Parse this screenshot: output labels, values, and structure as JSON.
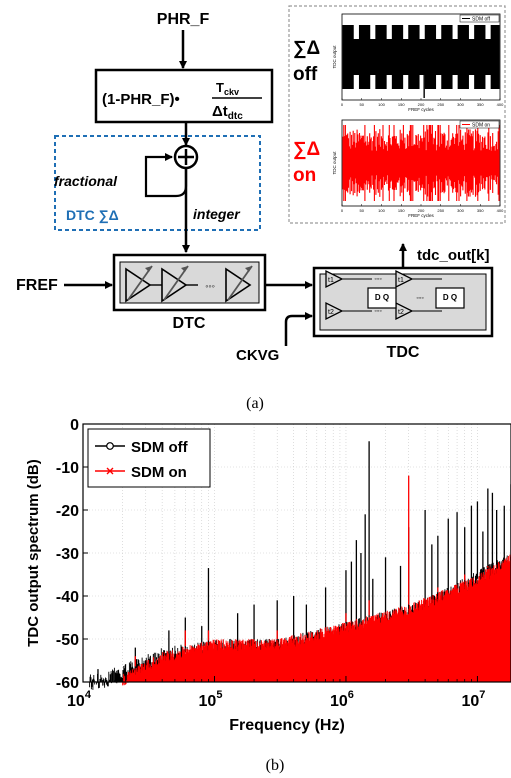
{
  "diagram": {
    "input_label": "PHR_F",
    "gain_prefix": "(1-PHR_F)•",
    "gain_numerator": "T",
    "gain_numerator_sub": "ckv",
    "gain_denominator": "Δt",
    "gain_denominator_sub": "dtc",
    "fractional_label": "fractional",
    "integer_label": "integer",
    "dtc_sd_label": "DTC ∑Δ",
    "fref_label": "FREF",
    "dtc_label": "DTC",
    "tdc_label": "TDC",
    "ckvg_label": "CKVG",
    "tdc_out_label": "tdc_out[k]",
    "sd_symbol": "∑Δ",
    "sd_off_label": "off",
    "sd_on_label": "on",
    "t1": "t1",
    "t2": "t2",
    "dq": "D Q",
    "dots": "◦◦◦",
    "panel_a_caption": "(a)",
    "panel_b_caption": "(b)",
    "colors": {
      "off": "#000000",
      "on": "#ff0000",
      "dashed_box": "#1f6fb5",
      "inset_border": "#9a9a9a"
    },
    "inset_off": {
      "legend": "SDM off",
      "ylabel": "TDC output",
      "xlabel": "FREF cycles",
      "xticks": [
        "0",
        "50",
        "100",
        "150",
        "200",
        "250",
        "300",
        "350",
        "400"
      ]
    },
    "inset_on": {
      "legend": "SDM on",
      "ylabel": "TDC output",
      "xlabel": "FREF cycles",
      "xticks": [
        "0",
        "50",
        "100",
        "150",
        "200",
        "250",
        "300",
        "350",
        "400"
      ]
    }
  },
  "chart_data": {
    "type": "line",
    "ylabel": "TDC output spectrum (dB)",
    "xlabel": "Frequency (Hz)",
    "x_scale": "log",
    "xlim": [
      10000,
      18000000
    ],
    "ylim": [
      -60,
      0
    ],
    "yticks": [
      "0",
      "-10",
      "-20",
      "-30",
      "-40",
      "-50",
      "-60"
    ],
    "xticks": [
      {
        "base": "10",
        "exp": "4"
      },
      {
        "base": "10",
        "exp": "5"
      },
      {
        "base": "10",
        "exp": "6"
      },
      {
        "base": "10",
        "exp": "7"
      }
    ],
    "grid": true,
    "legend_position": "top-left",
    "series": [
      {
        "name": "SDM off",
        "marker": "circle",
        "floor": [
          [
            13000,
            -58
          ],
          [
            20000,
            -56
          ],
          [
            40000,
            -52
          ],
          [
            100000,
            -50
          ],
          [
            300000,
            -50
          ],
          [
            1000000,
            -46
          ],
          [
            3000000,
            -42
          ],
          [
            6000000,
            -38
          ],
          [
            10000000,
            -34
          ],
          [
            18000000,
            -30
          ]
        ],
        "spurs": [
          [
            13000,
            -57
          ],
          [
            21000,
            -56
          ],
          [
            25000,
            -52
          ],
          [
            45000,
            -48
          ],
          [
            60000,
            -45
          ],
          [
            80000,
            -47
          ],
          [
            90000,
            -33.5
          ],
          [
            150000,
            -44
          ],
          [
            200000,
            -42
          ],
          [
            300000,
            -41
          ],
          [
            400000,
            -40
          ],
          [
            500000,
            -42
          ],
          [
            700000,
            -38
          ],
          [
            1000000,
            -34
          ],
          [
            1100000,
            -32
          ],
          [
            1200000,
            -27
          ],
          [
            1300000,
            -30
          ],
          [
            1400000,
            -21
          ],
          [
            1500000,
            -4
          ],
          [
            1600000,
            -36
          ],
          [
            2000000,
            -31
          ],
          [
            2600000,
            -33
          ],
          [
            3000000,
            -24
          ],
          [
            4000000,
            -20
          ],
          [
            4500000,
            -28
          ],
          [
            5000000,
            -26
          ],
          [
            6000000,
            -22
          ],
          [
            7000000,
            -20.5
          ],
          [
            8000000,
            -24
          ],
          [
            9000000,
            -19
          ],
          [
            10000000,
            -18
          ],
          [
            11000000,
            -25
          ],
          [
            12000000,
            -15
          ],
          [
            13000000,
            -16
          ],
          [
            14000000,
            -20
          ],
          [
            16000000,
            -19
          ],
          [
            18000000,
            -14
          ]
        ]
      },
      {
        "name": "SDM on",
        "marker": "x",
        "floor": [
          [
            20000,
            -58
          ],
          [
            40000,
            -53
          ],
          [
            100000,
            -50
          ],
          [
            300000,
            -50
          ],
          [
            1000000,
            -46
          ],
          [
            3000000,
            -42
          ],
          [
            6000000,
            -38
          ],
          [
            10000000,
            -35
          ],
          [
            18000000,
            -30
          ]
        ],
        "spurs": [
          [
            25000,
            -54
          ],
          [
            60000,
            -48
          ],
          [
            90000,
            -48
          ],
          [
            300000,
            -48
          ],
          [
            1000000,
            -44
          ],
          [
            1500000,
            -41
          ],
          [
            3000000,
            -12
          ],
          [
            5000000,
            -38
          ],
          [
            8000000,
            -35
          ],
          [
            12000000,
            -33
          ]
        ]
      }
    ]
  }
}
